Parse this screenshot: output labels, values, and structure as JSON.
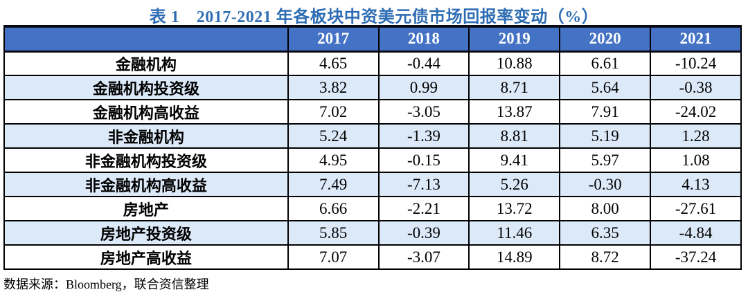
{
  "title": "表 1　2017-2021 年各板块中资美元债市场回报率变动（%）",
  "footer": {
    "source_note": "数据来源：Bloomberg，联合资信整理"
  },
  "colors": {
    "title_text": "#2E6DB3",
    "header_background": "#4472C4",
    "header_text": "#FFFFFF",
    "alt_row_background": "#DCE9F8",
    "border": "#000000"
  },
  "table": {
    "header": [
      "",
      "2017",
      "2018",
      "2019",
      "2020",
      "2021"
    ],
    "rows": [
      {
        "label": "金融机构",
        "values": [
          "4.65",
          "-0.44",
          "10.88",
          "6.61",
          "-10.24"
        ]
      },
      {
        "label": "金融机构投资级",
        "values": [
          "3.82",
          "0.99",
          "8.71",
          "5.64",
          "-0.38"
        ]
      },
      {
        "label": "金融机构高收益",
        "values": [
          "7.02",
          "-3.05",
          "13.87",
          "7.91",
          "-24.02"
        ]
      },
      {
        "label": "非金融机构",
        "values": [
          "5.24",
          "-1.39",
          "8.81",
          "5.19",
          "1.28"
        ]
      },
      {
        "label": "非金融机构投资级",
        "values": [
          "4.95",
          "-0.15",
          "9.41",
          "5.97",
          "1.08"
        ]
      },
      {
        "label": "非金融机构高收益",
        "values": [
          "7.49",
          "-7.13",
          "5.26",
          "-0.30",
          "4.13"
        ]
      },
      {
        "label": "房地产",
        "values": [
          "6.66",
          "-2.21",
          "13.72",
          "8.00",
          "-27.61"
        ]
      },
      {
        "label": "房地产投资级",
        "values": [
          "5.85",
          "-0.39",
          "11.46",
          "6.35",
          "-4.84"
        ]
      },
      {
        "label": "房地产高收益",
        "values": [
          "7.07",
          "-3.07",
          "14.89",
          "8.72",
          "-37.24"
        ]
      }
    ]
  },
  "chart_data": {
    "type": "table",
    "title": "表 1　2017-2021 年各板块中资美元债市场回报率变动（%）",
    "categories": [
      "2017",
      "2018",
      "2019",
      "2020",
      "2021"
    ],
    "series": [
      {
        "name": "金融机构",
        "values": [
          4.65,
          -0.44,
          10.88,
          6.61,
          -10.24
        ]
      },
      {
        "name": "金融机构投资级",
        "values": [
          3.82,
          0.99,
          8.71,
          5.64,
          -0.38
        ]
      },
      {
        "name": "金融机构高收益",
        "values": [
          7.02,
          -3.05,
          13.87,
          7.91,
          -24.02
        ]
      },
      {
        "name": "非金融机构",
        "values": [
          5.24,
          -1.39,
          8.81,
          5.19,
          1.28
        ]
      },
      {
        "name": "非金融机构投资级",
        "values": [
          4.95,
          -0.15,
          9.41,
          5.97,
          1.08
        ]
      },
      {
        "name": "非金融机构高收益",
        "values": [
          7.49,
          -7.13,
          5.26,
          -0.3,
          4.13
        ]
      },
      {
        "name": "房地产",
        "values": [
          6.66,
          -2.21,
          13.72,
          8.0,
          -27.61
        ]
      },
      {
        "name": "房地产投资级",
        "values": [
          5.85,
          -0.39,
          11.46,
          6.35,
          -4.84
        ]
      },
      {
        "name": "房地产高收益",
        "values": [
          7.07,
          -3.07,
          14.89,
          8.72,
          -37.24
        ]
      }
    ],
    "source": "数据来源：Bloomberg，联合资信整理"
  }
}
